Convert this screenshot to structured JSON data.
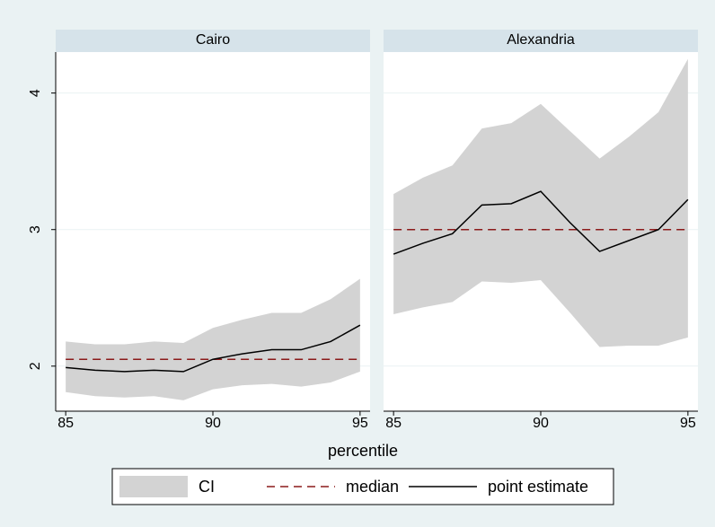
{
  "chart_data": [
    {
      "type": "band-line",
      "title": "Cairo",
      "x": [
        85,
        86,
        87,
        88,
        89,
        90,
        91,
        92,
        93,
        94,
        95
      ],
      "xlim": [
        84.66,
        95.34
      ],
      "xticks": [
        85,
        90,
        95
      ],
      "ylim": [
        1.67,
        4.3
      ],
      "yticks": [
        2,
        3,
        4
      ],
      "grid": true,
      "series": [
        {
          "name": "CI",
          "color": "#d3d3d3",
          "upper": [
            2.18,
            2.16,
            2.16,
            2.18,
            2.17,
            2.28,
            2.34,
            2.39,
            2.39,
            2.49,
            2.64
          ],
          "lower": [
            1.81,
            1.78,
            1.77,
            1.78,
            1.75,
            1.83,
            1.86,
            1.87,
            1.85,
            1.88,
            1.96
          ]
        },
        {
          "name": "median",
          "color": "#8b1a1a",
          "dashed": true,
          "values": [
            2.05,
            2.05,
            2.05,
            2.05,
            2.05,
            2.05,
            2.05,
            2.05,
            2.05,
            2.05,
            2.05
          ]
        },
        {
          "name": "point estimate",
          "color": "#000000",
          "values": [
            1.99,
            1.97,
            1.96,
            1.97,
            1.96,
            2.05,
            2.09,
            2.12,
            2.12,
            2.18,
            2.3
          ]
        }
      ]
    },
    {
      "type": "band-line",
      "title": "Alexandria",
      "x": [
        85,
        86,
        87,
        88,
        89,
        90,
        91,
        92,
        93,
        94,
        95
      ],
      "xlim": [
        84.66,
        95.34
      ],
      "xticks": [
        85,
        90,
        95
      ],
      "ylim": [
        1.67,
        4.3
      ],
      "yticks": [
        2,
        3,
        4
      ],
      "grid": true,
      "series": [
        {
          "name": "CI",
          "color": "#d3d3d3",
          "upper": [
            3.26,
            3.38,
            3.47,
            3.74,
            3.78,
            3.92,
            3.72,
            3.52,
            3.68,
            3.86,
            4.25
          ],
          "lower": [
            2.38,
            2.43,
            2.47,
            2.62,
            2.61,
            2.63,
            2.39,
            2.14,
            2.15,
            2.15,
            2.21
          ]
        },
        {
          "name": "median",
          "color": "#8b1a1a",
          "dashed": true,
          "values": [
            3,
            3,
            3,
            3,
            3,
            3,
            3,
            3,
            3,
            3,
            3
          ]
        },
        {
          "name": "point estimate",
          "color": "#000000",
          "values": [
            2.82,
            2.9,
            2.97,
            3.18,
            3.19,
            3.28,
            3.05,
            2.84,
            2.92,
            3,
            3.22
          ]
        }
      ]
    }
  ],
  "xlabel": "percentile"
}
